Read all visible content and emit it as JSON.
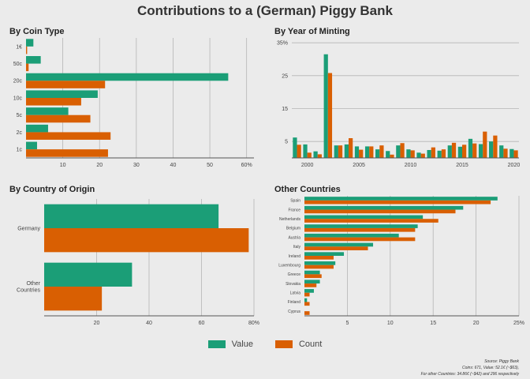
{
  "title": "Contributions to a (German) Piggy Bank",
  "legend": {
    "value": "Value",
    "count": "Count"
  },
  "colors": {
    "value": "#1b9e77",
    "count": "#d95f02",
    "grid": "#b5b5b5",
    "axis": "#555555",
    "background": "#ebebeb"
  },
  "footer": {
    "line1": "Source: Piggy Bank",
    "line2": "Coins: 671, Value: 52.1€ (~$63),",
    "line3": "For other Countries: 34.86€ (~$42) and 296 respectively"
  },
  "chart_data": [
    {
      "id": "coin",
      "type": "bar",
      "orientation": "horizontal",
      "title": "By Coin Type",
      "categories": [
        "1€",
        "50c",
        "20c",
        "10c",
        "5c",
        "2c",
        "1c"
      ],
      "series": [
        {
          "name": "Value",
          "values": [
            2,
            4,
            55,
            19.5,
            11.5,
            6,
            3
          ]
        },
        {
          "name": "Count",
          "values": [
            0.3,
            0.7,
            21.5,
            15,
            17.5,
            23,
            22.3
          ]
        }
      ],
      "xlim": [
        0,
        62
      ],
      "xticks": [
        10,
        20,
        30,
        40,
        50,
        60
      ],
      "xtick_labels": [
        "10",
        "20",
        "30",
        "40",
        "50",
        "60%"
      ]
    },
    {
      "id": "year",
      "type": "bar",
      "title": "By Year of Minting",
      "x": [
        1999,
        2000,
        2001,
        2002,
        2003,
        2004,
        2005,
        2006,
        2007,
        2008,
        2009,
        2010,
        2011,
        2012,
        2013,
        2014,
        2015,
        2016,
        2017,
        2018,
        2019,
        2020
      ],
      "series": [
        {
          "name": "Value",
          "values": [
            6.2,
            4.1,
            2,
            31.5,
            3.8,
            4.1,
            3.5,
            3.5,
            2.6,
            2.1,
            3.8,
            2.6,
            1.6,
            2.4,
            2.2,
            3.8,
            3.4,
            5.8,
            4.2,
            5,
            3.8,
            2.7
          ]
        },
        {
          "name": "Count",
          "values": [
            4,
            1.6,
            1.1,
            25.8,
            3.8,
            6,
            2.5,
            3.5,
            3.8,
            1,
            4.5,
            2.3,
            1.3,
            3.2,
            2.6,
            4.6,
            4,
            4.4,
            8,
            6.8,
            2.8,
            2.3
          ]
        }
      ],
      "ylim": [
        0,
        36
      ],
      "yticks": [
        5,
        15,
        25,
        35
      ],
      "ytick_labels": [
        "5",
        "15",
        "25",
        "35%"
      ],
      "xticks": [
        2000,
        2005,
        2010,
        2015,
        2020
      ]
    },
    {
      "id": "country",
      "type": "bar",
      "orientation": "horizontal",
      "title": "By Country of Origin",
      "categories": [
        "Germany",
        "Other Countries"
      ],
      "category_lines": [
        [
          "Germany"
        ],
        [
          "Other",
          "Countries"
        ]
      ],
      "series": [
        {
          "name": "Value",
          "values": [
            66.5,
            33.5
          ]
        },
        {
          "name": "Count",
          "values": [
            78,
            22
          ]
        }
      ],
      "xlim": [
        0,
        80
      ],
      "xticks": [
        20,
        40,
        60,
        80
      ],
      "xtick_labels": [
        "20",
        "40",
        "60",
        "80%"
      ]
    },
    {
      "id": "other",
      "type": "bar",
      "orientation": "horizontal",
      "title": "Other Countries",
      "categories": [
        "Spain",
        "France",
        "Netherlands",
        "Belgium",
        "Austria",
        "Italy",
        "Ireland",
        "Luxembourg",
        "Greece",
        "Slovakia",
        "Latvia",
        "Finland",
        "Cyprus"
      ],
      "series": [
        {
          "name": "Value",
          "values": [
            22.5,
            18.5,
            13.8,
            13.2,
            11,
            8,
            4.6,
            3.6,
            1.8,
            1.8,
            1.1,
            0.3,
            0
          ]
        },
        {
          "name": "Count",
          "values": [
            21.7,
            17.6,
            15.6,
            12.9,
            12.9,
            7.4,
            3.4,
            3.4,
            2,
            1.4,
            0.6,
            0.6,
            0.6
          ]
        }
      ],
      "xlim": [
        0,
        25
      ],
      "xticks": [
        5,
        10,
        15,
        20,
        25
      ],
      "xtick_labels": [
        "5",
        "10",
        "15",
        "20",
        "25%"
      ]
    }
  ]
}
